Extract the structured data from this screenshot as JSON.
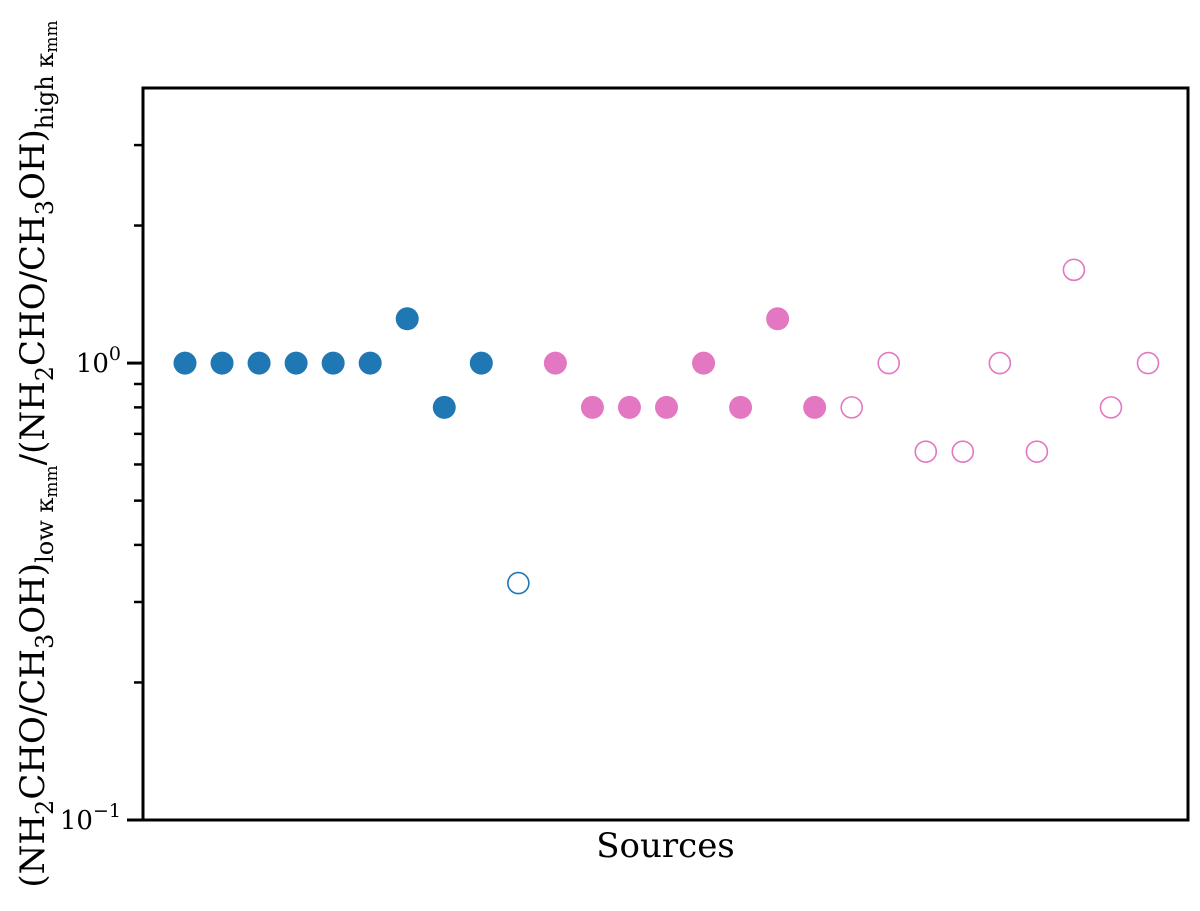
{
  "chart_data": {
    "type": "scatter",
    "title": "",
    "xlabel": "Sources",
    "ylabel": {
      "parts": [
        {
          "t": "(NH",
          "s": "n"
        },
        {
          "t": "2",
          "s": "sub"
        },
        {
          "t": "CHO/CH",
          "s": "n"
        },
        {
          "t": "3",
          "s": "sub"
        },
        {
          "t": "OH)",
          "s": "n"
        },
        {
          "t": "low κ",
          "s": "sub"
        },
        {
          "t": "mm",
          "s": "subsub"
        },
        {
          "t": "/(NH",
          "s": "n"
        },
        {
          "t": "2",
          "s": "sub"
        },
        {
          "t": "CHO/CH",
          "s": "n"
        },
        {
          "t": "3",
          "s": "sub"
        },
        {
          "t": "OH)",
          "s": "n"
        },
        {
          "t": "high κ",
          "s": "sub"
        },
        {
          "t": "mm",
          "s": "subsub"
        }
      ]
    },
    "y_scale": "log",
    "ylim": [
      0.1,
      4.0
    ],
    "xlim": [
      0,
      27
    ],
    "x_ticks_visible": false,
    "y_major_ticks": [
      {
        "value": 0.1,
        "base": "10",
        "exp": "−1"
      },
      {
        "value": 1.0,
        "base": "10",
        "exp": "0"
      }
    ],
    "y_minor_ticks": [
      0.2,
      0.3,
      0.4,
      0.5,
      0.6,
      0.7,
      0.8,
      0.9,
      2,
      3
    ],
    "grid": false,
    "legend": "none",
    "series": [
      {
        "color": "#1f77b4",
        "filled": true,
        "points": [
          [
            1,
            1.0
          ],
          [
            2,
            1.0
          ],
          [
            3,
            1.0
          ],
          [
            4,
            1.0
          ],
          [
            5,
            1.0
          ],
          [
            6,
            1.0
          ],
          [
            7,
            1.25
          ],
          [
            8,
            0.8
          ],
          [
            9,
            1.0
          ]
        ]
      },
      {
        "color": "#1f77b4",
        "filled": false,
        "points": [
          [
            10,
            0.33
          ]
        ]
      },
      {
        "color": "#e377c2",
        "filled": true,
        "points": [
          [
            11,
            1.0
          ],
          [
            12,
            0.8
          ],
          [
            13,
            0.8
          ],
          [
            14,
            0.8
          ],
          [
            15,
            1.0
          ],
          [
            16,
            0.8
          ],
          [
            17,
            1.25
          ],
          [
            18,
            0.8
          ]
        ]
      },
      {
        "color": "#e377c2",
        "filled": false,
        "points": [
          [
            19,
            0.8
          ],
          [
            20,
            1.0
          ],
          [
            21,
            0.64
          ],
          [
            22,
            0.64
          ],
          [
            23,
            1.0
          ],
          [
            24,
            0.64
          ],
          [
            25,
            1.6
          ],
          [
            26,
            0.8
          ],
          [
            27,
            1.0
          ]
        ]
      }
    ]
  }
}
